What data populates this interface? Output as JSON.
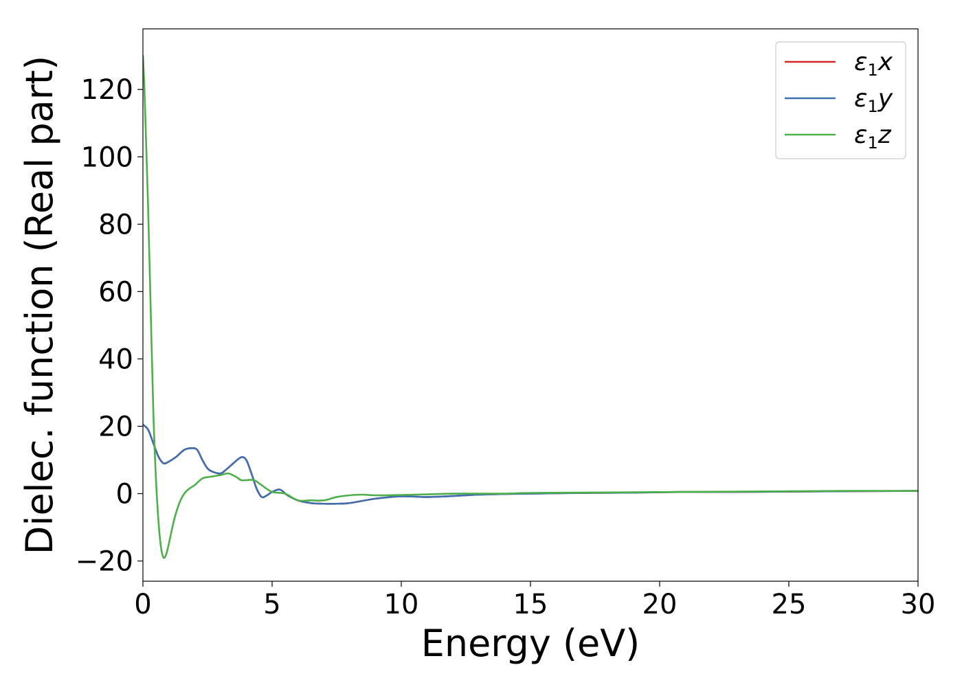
{
  "chart_data": {
    "type": "line",
    "title": "",
    "xlabel": "Energy (eV)",
    "ylabel": "Dielec. function (Real part)",
    "xlim": [
      0,
      30
    ],
    "ylim": [
      -26,
      138
    ],
    "xticks": [
      0,
      5,
      10,
      15,
      20,
      25,
      30
    ],
    "yticks": [
      -20,
      0,
      20,
      40,
      60,
      80,
      100,
      120
    ],
    "xtick_labels": [
      "0",
      "5",
      "10",
      "15",
      "20",
      "25",
      "30"
    ],
    "ytick_labels": [
      "−20",
      "0",
      "20",
      "40",
      "60",
      "80",
      "100",
      "120"
    ],
    "grid": false,
    "legend_position": "top-right",
    "series": [
      {
        "name": "ε₁x",
        "legend_main": "ε",
        "legend_sub": "1",
        "legend_var": "x",
        "color": "#d62728",
        "x": [
          0,
          0.2,
          0.4,
          0.6,
          0.8,
          1.0,
          1.3,
          1.6,
          1.9,
          2.1,
          2.3,
          2.5,
          2.7,
          3.0,
          3.2,
          3.5,
          3.8,
          4.0,
          4.2,
          4.4,
          4.6,
          4.8,
          5.0,
          5.3,
          5.6,
          6.0,
          6.5,
          7.0,
          7.5,
          8.0,
          9.0,
          10.0,
          11.0,
          12.0,
          13.0,
          14.0,
          15.0,
          17.0,
          19.0,
          21.0,
          23.0,
          25.0,
          27.0,
          30.0
        ],
        "y": [
          20.5,
          19,
          15,
          11,
          9,
          9.5,
          11,
          13,
          13.5,
          13,
          10,
          7.5,
          6.5,
          6,
          7,
          9,
          10.8,
          10,
          6,
          1.5,
          -1,
          -0.5,
          0.5,
          1.2,
          -0.5,
          -2,
          -2.8,
          -3,
          -3,
          -2.8,
          -1.5,
          -0.8,
          -1,
          -0.7,
          -0.3,
          -0.1,
          0,
          0.2,
          0.3,
          0.5,
          0.5,
          0.6,
          0.7,
          0.8
        ]
      },
      {
        "name": "ε₁y",
        "legend_main": "ε",
        "legend_sub": "1",
        "legend_var": "y",
        "color": "#3e70b0",
        "x": [
          0,
          0.2,
          0.4,
          0.6,
          0.8,
          1.0,
          1.3,
          1.6,
          1.9,
          2.1,
          2.3,
          2.5,
          2.7,
          3.0,
          3.2,
          3.5,
          3.8,
          4.0,
          4.2,
          4.4,
          4.6,
          4.8,
          5.0,
          5.3,
          5.6,
          6.0,
          6.5,
          7.0,
          7.5,
          8.0,
          9.0,
          10.0,
          11.0,
          12.0,
          13.0,
          14.0,
          15.0,
          17.0,
          19.0,
          21.0,
          23.0,
          25.0,
          27.0,
          30.0
        ],
        "y": [
          20.5,
          19,
          15,
          11,
          9,
          9.5,
          11,
          13,
          13.5,
          13,
          10,
          7.5,
          6.5,
          6,
          7,
          9,
          10.8,
          10,
          6,
          1.5,
          -1,
          -0.5,
          0.5,
          1.2,
          -0.5,
          -2,
          -2.8,
          -3,
          -3,
          -2.8,
          -1.5,
          -0.8,
          -1,
          -0.7,
          -0.3,
          -0.1,
          0,
          0.2,
          0.3,
          0.5,
          0.5,
          0.6,
          0.7,
          0.8
        ]
      },
      {
        "name": "ε₁z",
        "legend_main": "ε",
        "legend_sub": "1",
        "legend_var": "z",
        "color": "#4daf4a",
        "x": [
          0,
          0.05,
          0.1,
          0.2,
          0.3,
          0.4,
          0.5,
          0.6,
          0.7,
          0.8,
          0.9,
          1.0,
          1.2,
          1.4,
          1.6,
          1.8,
          2.0,
          2.3,
          2.6,
          3.0,
          3.3,
          3.6,
          3.8,
          4.0,
          4.3,
          4.6,
          5.0,
          5.5,
          6.0,
          6.5,
          7.0,
          7.5,
          8.0,
          8.5,
          9.0,
          10.0,
          11.0,
          12.0,
          13.0,
          14.0,
          15.0,
          17.0,
          19.0,
          21.0,
          23.0,
          25.0,
          27.0,
          30.0
        ],
        "y": [
          130,
          122,
          110,
          85,
          55,
          25,
          5,
          -8,
          -16,
          -19,
          -18,
          -15,
          -8,
          -3,
          0,
          1.5,
          2.5,
          4.5,
          5,
          5.5,
          6,
          5,
          4,
          4,
          4,
          2.5,
          0.5,
          0,
          -2,
          -2,
          -2,
          -1,
          -0.5,
          -0.3,
          -0.5,
          -0.4,
          -0.2,
          0,
          0,
          0,
          0.2,
          0.3,
          0.4,
          0.5,
          0.6,
          0.7,
          0.8,
          0.8
        ]
      }
    ]
  }
}
